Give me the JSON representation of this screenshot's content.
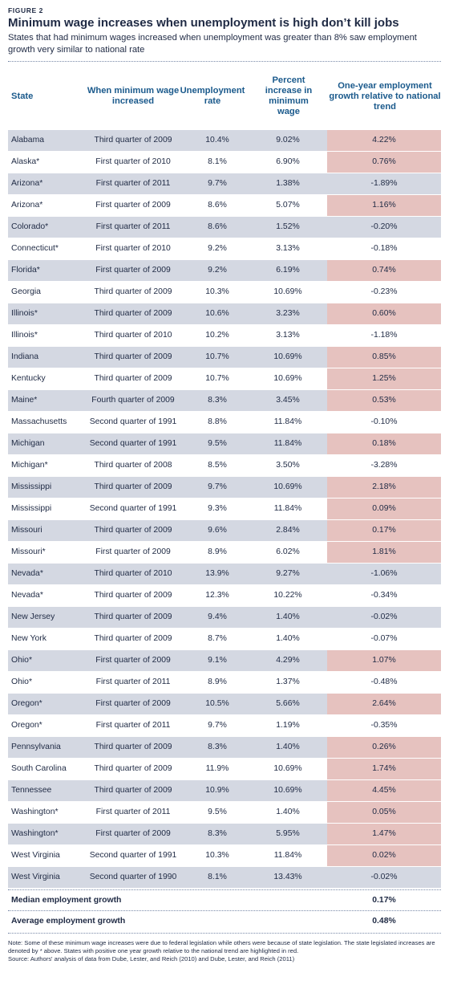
{
  "figure_label": "FIGURE 2",
  "title": "Minimum wage increases when unemployment is high don’t kill jobs",
  "subtitle": "States that had minimum wages increased when unemployment was greater than 8% saw employment growth very similar to national rate",
  "colors": {
    "header_text": "#1b5a8c",
    "row_shade": "#d4d8e2",
    "positive_highlight": "#e6c2bf"
  },
  "columns": {
    "state": "State",
    "when": "When minimum wage increased",
    "unemployment": "Unemployment rate",
    "percent": "Percent increase in minimum wage",
    "growth": "One-year employment growth relative to national trend"
  },
  "rows": [
    {
      "state": "Alabama",
      "when": "Third quarter of 2009",
      "unemployment": "10.4%",
      "percent": "9.02%",
      "growth": "4.22%",
      "positive": true
    },
    {
      "state": "Alaska*",
      "when": "First quarter of 2010",
      "unemployment": "8.1%",
      "percent": "6.90%",
      "growth": "0.76%",
      "positive": true
    },
    {
      "state": "Arizona*",
      "when": "First quarter of 2011",
      "unemployment": "9.7%",
      "percent": "1.38%",
      "growth": "-1.89%",
      "positive": false
    },
    {
      "state": "Arizona*",
      "when": "First quarter of 2009",
      "unemployment": "8.6%",
      "percent": "5.07%",
      "growth": "1.16%",
      "positive": true
    },
    {
      "state": "Colorado*",
      "when": "First quarter of 2011",
      "unemployment": "8.6%",
      "percent": "1.52%",
      "growth": "-0.20%",
      "positive": false
    },
    {
      "state": "Connecticut*",
      "when": "First quarter of 2010",
      "unemployment": "9.2%",
      "percent": "3.13%",
      "growth": "-0.18%",
      "positive": false
    },
    {
      "state": "Florida*",
      "when": "First quarter of 2009",
      "unemployment": "9.2%",
      "percent": "6.19%",
      "growth": "0.74%",
      "positive": true
    },
    {
      "state": "Georgia",
      "when": "Third quarter of 2009",
      "unemployment": "10.3%",
      "percent": "10.69%",
      "growth": "-0.23%",
      "positive": false
    },
    {
      "state": "Illinois*",
      "when": "Third quarter of 2009",
      "unemployment": "10.6%",
      "percent": "3.23%",
      "growth": "0.60%",
      "positive": true
    },
    {
      "state": "Illinois*",
      "when": "Third quarter of 2010",
      "unemployment": "10.2%",
      "percent": "3.13%",
      "growth": "-1.18%",
      "positive": false
    },
    {
      "state": "Indiana",
      "when": "Third quarter of 2009",
      "unemployment": "10.7%",
      "percent": "10.69%",
      "growth": "0.85%",
      "positive": true
    },
    {
      "state": "Kentucky",
      "when": "Third quarter of 2009",
      "unemployment": "10.7%",
      "percent": "10.69%",
      "growth": "1.25%",
      "positive": true
    },
    {
      "state": "Maine*",
      "when": "Fourth quarter of 2009",
      "unemployment": "8.3%",
      "percent": "3.45%",
      "growth": "0.53%",
      "positive": true
    },
    {
      "state": "Massachusetts",
      "when": "Second quarter of 1991",
      "unemployment": "8.8%",
      "percent": "11.84%",
      "growth": "-0.10%",
      "positive": false
    },
    {
      "state": "Michigan",
      "when": "Second quarter of 1991",
      "unemployment": "9.5%",
      "percent": "11.84%",
      "growth": "0.18%",
      "positive": true
    },
    {
      "state": "Michigan*",
      "when": "Third quarter of 2008",
      "unemployment": "8.5%",
      "percent": "3.50%",
      "growth": "-3.28%",
      "positive": false
    },
    {
      "state": "Mississippi",
      "when": "Third quarter of 2009",
      "unemployment": "9.7%",
      "percent": "10.69%",
      "growth": "2.18%",
      "positive": true
    },
    {
      "state": "Mississippi",
      "when": "Second quarter of 1991",
      "unemployment": "9.3%",
      "percent": "11.84%",
      "growth": "0.09%",
      "positive": true
    },
    {
      "state": "Missouri",
      "when": "Third quarter of 2009",
      "unemployment": "9.6%",
      "percent": "2.84%",
      "growth": "0.17%",
      "positive": true
    },
    {
      "state": "Missouri*",
      "when": "First quarter of 2009",
      "unemployment": "8.9%",
      "percent": "6.02%",
      "growth": "1.81%",
      "positive": true
    },
    {
      "state": "Nevada*",
      "when": "Third quarter of 2010",
      "unemployment": "13.9%",
      "percent": "9.27%",
      "growth": "-1.06%",
      "positive": false
    },
    {
      "state": "Nevada*",
      "when": "Third quarter of 2009",
      "unemployment": "12.3%",
      "percent": "10.22%",
      "growth": "-0.34%",
      "positive": false
    },
    {
      "state": "New Jersey",
      "when": "Third quarter of 2009",
      "unemployment": "9.4%",
      "percent": "1.40%",
      "growth": "-0.02%",
      "positive": false
    },
    {
      "state": "New York",
      "when": "Third quarter of 2009",
      "unemployment": "8.7%",
      "percent": "1.40%",
      "growth": "-0.07%",
      "positive": false
    },
    {
      "state": "Ohio*",
      "when": "First quarter of 2009",
      "unemployment": "9.1%",
      "percent": "4.29%",
      "growth": "1.07%",
      "positive": true
    },
    {
      "state": "Ohio*",
      "when": "First quarter of 2011",
      "unemployment": "8.9%",
      "percent": "1.37%",
      "growth": "-0.48%",
      "positive": false
    },
    {
      "state": "Oregon*",
      "when": "First quarter of 2009",
      "unemployment": "10.5%",
      "percent": "5.66%",
      "growth": "2.64%",
      "positive": true
    },
    {
      "state": "Oregon*",
      "when": "First quarter of 2011",
      "unemployment": "9.7%",
      "percent": "1.19%",
      "growth": "-0.35%",
      "positive": false
    },
    {
      "state": "Pennsylvania",
      "when": "Third quarter of 2009",
      "unemployment": "8.3%",
      "percent": "1.40%",
      "growth": "0.26%",
      "positive": true
    },
    {
      "state": "South Carolina",
      "when": "Third quarter of 2009",
      "unemployment": "11.9%",
      "percent": "10.69%",
      "growth": "1.74%",
      "positive": true
    },
    {
      "state": "Tennessee",
      "when": "Third quarter of 2009",
      "unemployment": "10.9%",
      "percent": "10.69%",
      "growth": "4.45%",
      "positive": true
    },
    {
      "state": "Washington*",
      "when": "First quarter of 2011",
      "unemployment": "9.5%",
      "percent": "1.40%",
      "growth": "0.05%",
      "positive": true
    },
    {
      "state": "Washington*",
      "when": "First quarter of 2009",
      "unemployment": "8.3%",
      "percent": "5.95%",
      "growth": "1.47%",
      "positive": true
    },
    {
      "state": "West Virginia",
      "when": "Second quarter of 1991",
      "unemployment": "10.3%",
      "percent": "11.84%",
      "growth": "0.02%",
      "positive": true
    },
    {
      "state": "West Virginia",
      "when": "Second quarter of 1990",
      "unemployment": "8.1%",
      "percent": "13.43%",
      "growth": "-0.02%",
      "positive": false
    }
  ],
  "summary": [
    {
      "label": "Median employment growth",
      "value": "0.17%"
    },
    {
      "label": "Average employment growth",
      "value": "0.48%"
    }
  ],
  "note": "Note: Some of these minimum wage increases were due to federal legislation while others were because of state legislation. The state legislated increases are denoted by * above. States with positive one year growth relative to the national trend are highlighted in red.",
  "source": "Source: Authors' analysis of data from Dube, Lester, and Reich (2010) and Dube, Lester, and Reich (2011)"
}
